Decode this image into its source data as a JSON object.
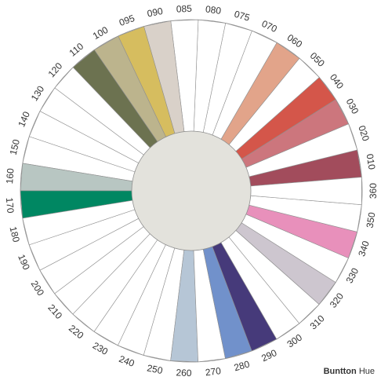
{
  "caption": {
    "brand": "Buntton",
    "word": "Hue"
  },
  "colors": {
    "outline": "#8f8f8f",
    "hub_fill": "#e3e2dc",
    "empty_fill": "#ffffff"
  },
  "segments": [
    {
      "label": "010",
      "color": "#a24c5c"
    },
    {
      "label": "020",
      "color": "#ffffff"
    },
    {
      "label": "030",
      "color": "#cc767d"
    },
    {
      "label": "040",
      "color": "#d4564a"
    },
    {
      "label": "050",
      "color": "#ffffff"
    },
    {
      "label": "060",
      "color": "#e2a48a"
    },
    {
      "label": "070",
      "color": "#ffffff"
    },
    {
      "label": "075",
      "color": "#ffffff"
    },
    {
      "label": "080",
      "color": "#ffffff"
    },
    {
      "label": "085",
      "color": "#ffffff"
    },
    {
      "label": "090",
      "color": "#d9d1c9"
    },
    {
      "label": "095",
      "color": "#d6bd5f"
    },
    {
      "label": "100",
      "color": "#bcb48d"
    },
    {
      "label": "110",
      "color": "#6c7250"
    },
    {
      "label": "120",
      "color": "#ffffff"
    },
    {
      "label": "130",
      "color": "#ffffff"
    },
    {
      "label": "140",
      "color": "#ffffff"
    },
    {
      "label": "150",
      "color": "#ffffff"
    },
    {
      "label": "160",
      "color": "#b8c6c2"
    },
    {
      "label": "170",
      "color": "#008762"
    },
    {
      "label": "180",
      "color": "#ffffff"
    },
    {
      "label": "190",
      "color": "#ffffff"
    },
    {
      "label": "200",
      "color": "#ffffff"
    },
    {
      "label": "210",
      "color": "#ffffff"
    },
    {
      "label": "220",
      "color": "#ffffff"
    },
    {
      "label": "230",
      "color": "#ffffff"
    },
    {
      "label": "240",
      "color": "#ffffff"
    },
    {
      "label": "250",
      "color": "#ffffff"
    },
    {
      "label": "260",
      "color": "#b6c6d6"
    },
    {
      "label": "270",
      "color": "#ffffff"
    },
    {
      "label": "280",
      "color": "#7191cb"
    },
    {
      "label": "290",
      "color": "#463a7a"
    },
    {
      "label": "300",
      "color": "#ffffff"
    },
    {
      "label": "310",
      "color": "#ffffff"
    },
    {
      "label": "320",
      "color": "#cdc6cf"
    },
    {
      "label": "330",
      "color": "#ffffff"
    },
    {
      "label": "340",
      "color": "#e890bb"
    },
    {
      "label": "350",
      "color": "#ffffff"
    },
    {
      "label": "360",
      "color": "#ffffff"
    }
  ]
}
